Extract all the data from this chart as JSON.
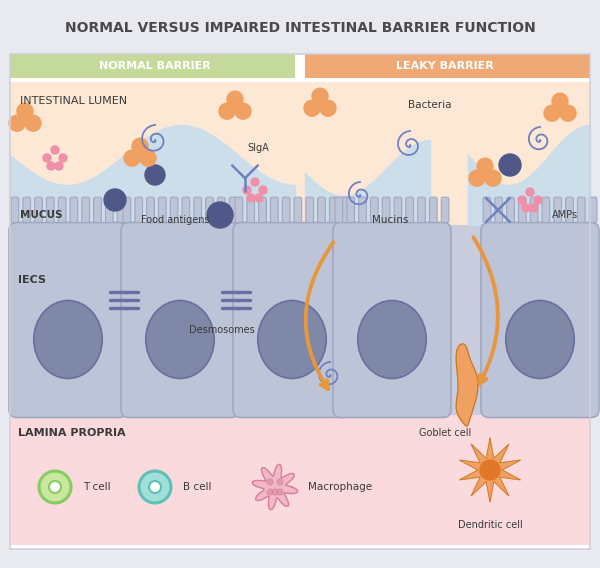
{
  "title": "NORMAL VERSUS IMPAIRED INTESTINAL BARRIER FUNCTION",
  "title_color": "#4a4a4a",
  "background_top_color": "#e8eaf0",
  "background_main_color": "#ffffff",
  "normal_label": "NORMAL BARRIER",
  "leaky_label": "LEAKY BARRIER",
  "normal_header_color": "#c5d99a",
  "leaky_header_color": "#f0a875",
  "lumen_bg_color": "#fde8d5",
  "mucus_color": "#c5ddef",
  "cell_body_color": "#bec4d8",
  "cell_border_color": "#a0a8c0",
  "nucleus_color": "#8088a8",
  "nucleus_border_color": "#6870a0",
  "lamina_color": "#fadadd",
  "orange_particle_color": "#f0a060",
  "pink_particle_color": "#f090a8",
  "dark_blue_particle_color": "#505888",
  "arrow_color": "#e8963c",
  "text_color": "#3a3a3a",
  "desmosomes_color": "#6870a0",
  "goblet_color": "#f0a060",
  "dendritic_color": "#f0a060",
  "dendritic_nucleus_color": "#e07828",
  "t_cell_fill": "#c8e8a0",
  "t_cell_ring": "#88cc60",
  "b_cell_fill": "#a0e0d8",
  "b_cell_ring": "#60c0b8",
  "macrophage_color": "#f0b8c8",
  "macrophage_border": "#d88098",
  "sigg_color": "#7080c0",
  "bacteria_swirl_color": "#7080c0",
  "gap_fill_color": "#d8eaf5",
  "cell_gap_color": "#d0d8ec"
}
